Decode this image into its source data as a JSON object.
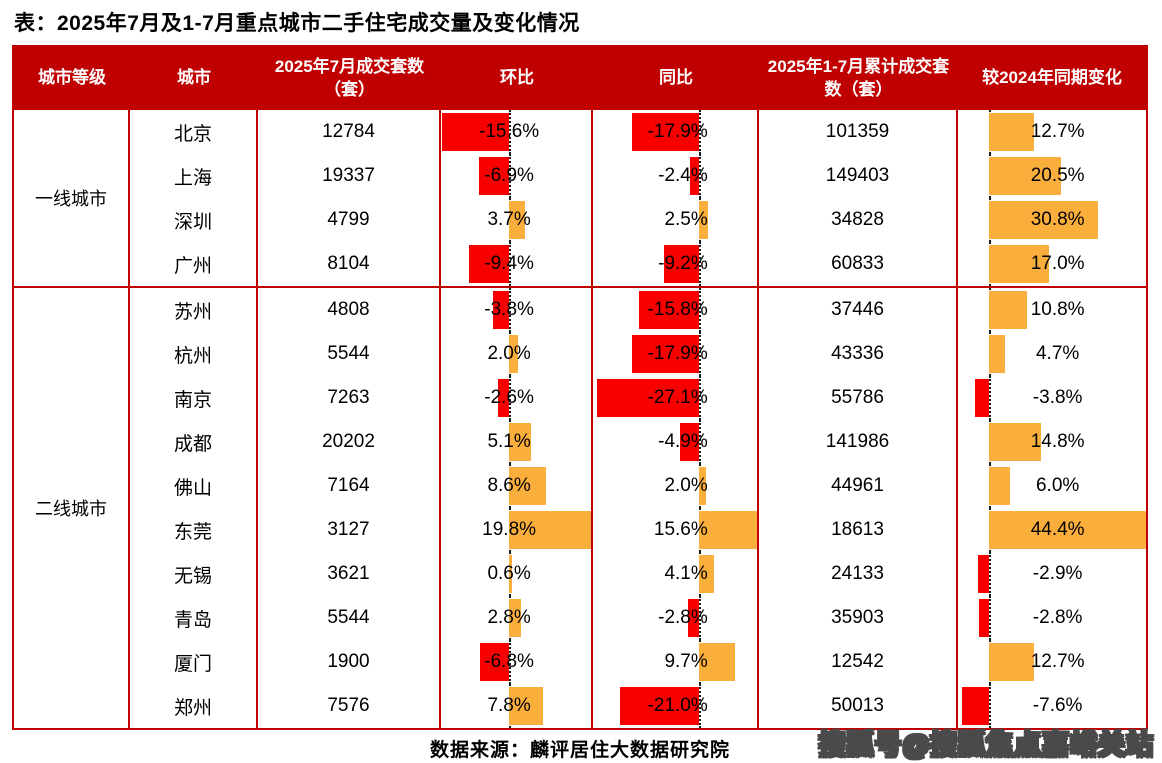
{
  "title": "表：2025年7月及1-7月重点城市二手住宅成交量及变化情况",
  "source": "数据来源：麟评居住大数据研究院",
  "watermark": "搜狐号@搜狐焦点嘉峪关站",
  "colors": {
    "header_bg": "#C00000",
    "border": "#C00000",
    "bar_negative": "#F80000",
    "bar_positive": "#FAAE3B",
    "zero_line": "#1a1a1a"
  },
  "chart_data": {
    "type": "table",
    "note": "table with in-cell bar charts; bars red when negative, orange when positive",
    "columns": [
      "城市等级",
      "城市",
      "2025年7月成交套数（套）",
      "环比",
      "同比",
      "2025年1-7月累计成交套数（套）",
      "较2024年同期变化"
    ],
    "groups": [
      {
        "tier": "一线城市",
        "rows": [
          {
            "city": "北京",
            "jul_volume": 12784,
            "mom_pct": -15.6,
            "yoy_pct": -17.9,
            "cum_volume": 101359,
            "chg_pct": 12.7
          },
          {
            "city": "上海",
            "jul_volume": 19337,
            "mom_pct": -6.9,
            "yoy_pct": -2.4,
            "cum_volume": 149403,
            "chg_pct": 20.5
          },
          {
            "city": "深圳",
            "jul_volume": 4799,
            "mom_pct": 3.7,
            "yoy_pct": 2.5,
            "cum_volume": 34828,
            "chg_pct": 30.8
          },
          {
            "city": "广州",
            "jul_volume": 8104,
            "mom_pct": -9.4,
            "yoy_pct": -9.2,
            "cum_volume": 60833,
            "chg_pct": 17.0
          }
        ]
      },
      {
        "tier": "二线城市",
        "rows": [
          {
            "city": "苏州",
            "jul_volume": 4808,
            "mom_pct": -3.8,
            "yoy_pct": -15.8,
            "cum_volume": 37446,
            "chg_pct": 10.8
          },
          {
            "city": "杭州",
            "jul_volume": 5544,
            "mom_pct": 2.0,
            "yoy_pct": -17.9,
            "cum_volume": 43336,
            "chg_pct": 4.7
          },
          {
            "city": "南京",
            "jul_volume": 7263,
            "mom_pct": -2.6,
            "yoy_pct": -27.1,
            "cum_volume": 55786,
            "chg_pct": -3.8
          },
          {
            "city": "成都",
            "jul_volume": 20202,
            "mom_pct": 5.1,
            "yoy_pct": -4.9,
            "cum_volume": 141986,
            "chg_pct": 14.8
          },
          {
            "city": "佛山",
            "jul_volume": 7164,
            "mom_pct": 8.6,
            "yoy_pct": 2.0,
            "cum_volume": 44961,
            "chg_pct": 6.0
          },
          {
            "city": "东莞",
            "jul_volume": 3127,
            "mom_pct": 19.8,
            "yoy_pct": 15.6,
            "cum_volume": 18613,
            "chg_pct": 44.4
          },
          {
            "city": "无锡",
            "jul_volume": 3621,
            "mom_pct": 0.6,
            "yoy_pct": 4.1,
            "cum_volume": 24133,
            "chg_pct": -2.9
          },
          {
            "city": "青岛",
            "jul_volume": 5544,
            "mom_pct": 2.8,
            "yoy_pct": -2.8,
            "cum_volume": 35903,
            "chg_pct": -2.8
          },
          {
            "city": "厦门",
            "jul_volume": 1900,
            "mom_pct": -6.8,
            "yoy_pct": 9.7,
            "cum_volume": 12542,
            "chg_pct": 12.7
          },
          {
            "city": "郑州",
            "jul_volume": 7576,
            "mom_pct": 7.8,
            "yoy_pct": -21.0,
            "cum_volume": 50013,
            "chg_pct": -7.6
          }
        ]
      }
    ]
  }
}
